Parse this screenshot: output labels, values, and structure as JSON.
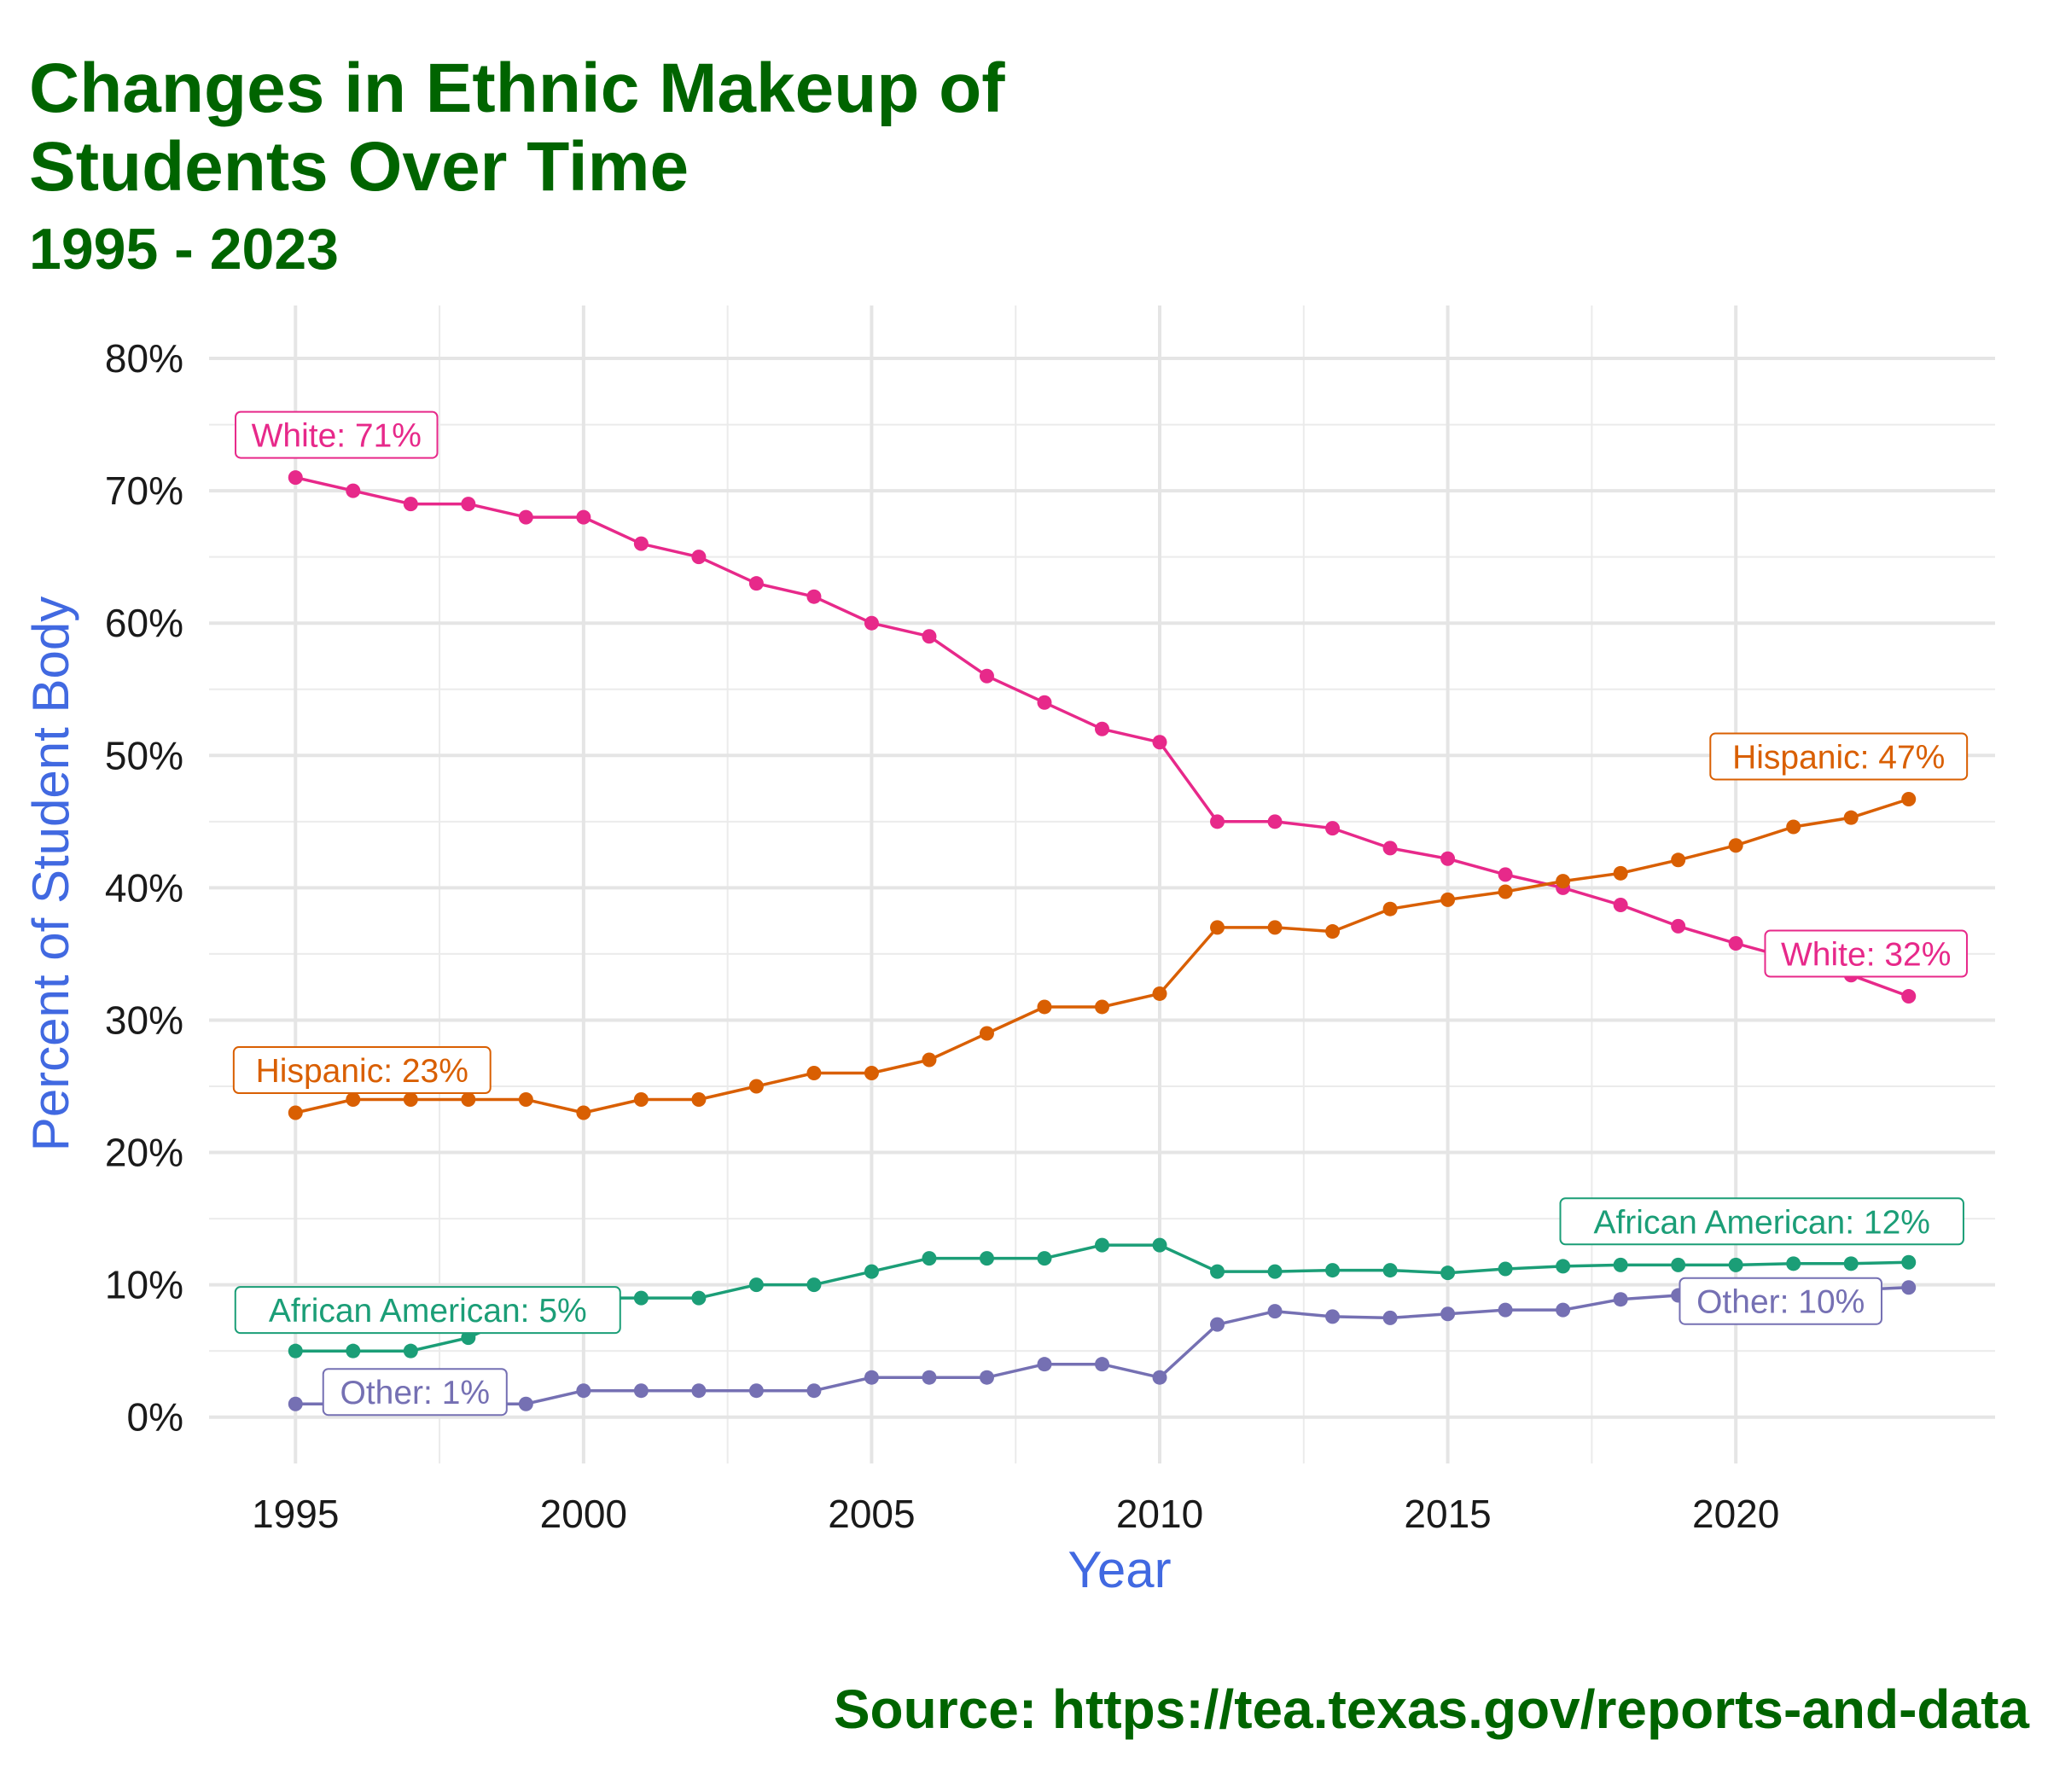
{
  "title_line1": "Changes in Ethnic Makeup of",
  "title_line2": "Students Over Time",
  "subtitle": "1995 - 2023",
  "source": "Source:  https://tea.texas.gov/reports-and-data",
  "chart_data": {
    "type": "line",
    "title": "Changes in Ethnic Makeup of Students Over Time",
    "subtitle": "1995 - 2023",
    "xlabel": "Year",
    "ylabel": "Percent of Student Body",
    "xlim": [
      1993.5,
      2024.5
    ],
    "ylim": [
      -3.5,
      84
    ],
    "x_ticks": [
      1995,
      2000,
      2005,
      2010,
      2015,
      2020
    ],
    "y_ticks": [
      0,
      10,
      20,
      30,
      40,
      50,
      60,
      70,
      80
    ],
    "y_tick_labels": [
      "0%",
      "10%",
      "20%",
      "30%",
      "40%",
      "50%",
      "60%",
      "70%",
      "80%"
    ],
    "grid": true,
    "legend": "none",
    "x": [
      1995,
      1996,
      1997,
      1998,
      1999,
      2000,
      2001,
      2002,
      2003,
      2004,
      2005,
      2006,
      2007,
      2008,
      2009,
      2010,
      2011,
      2012,
      2013,
      2014,
      2015,
      2016,
      2017,
      2018,
      2019,
      2020,
      2021,
      2022,
      2023
    ],
    "series": [
      {
        "name": "White",
        "color": "#E7298A",
        "values": [
          71,
          70,
          69,
          69,
          68,
          68,
          66,
          65,
          63,
          62,
          60,
          59,
          56,
          54,
          52,
          51,
          45,
          45,
          44.5,
          43,
          42.2,
          41,
          40,
          38.7,
          37.1,
          35.8,
          34.6,
          33.4,
          31.8
        ],
        "start_label": "White: 71%",
        "end_label": "White: 32%"
      },
      {
        "name": "Hispanic",
        "color": "#D95F02",
        "values": [
          23,
          24,
          24,
          24,
          24,
          23,
          24,
          24,
          25,
          26,
          26,
          27,
          29,
          31,
          31,
          32,
          37,
          37,
          36.7,
          38.4,
          39.1,
          39.7,
          40.5,
          41.1,
          42.1,
          43.2,
          44.6,
          45.3,
          46.7
        ],
        "start_label": "Hispanic: 23%",
        "end_label": "Hispanic: 47%"
      },
      {
        "name": "African American",
        "color": "#1B9E77",
        "values": [
          5,
          5,
          5,
          6,
          8,
          9,
          9,
          9,
          10,
          10,
          11,
          12,
          12,
          12,
          13,
          13,
          11,
          11,
          11.1,
          11.1,
          10.9,
          11.2,
          11.4,
          11.5,
          11.5,
          11.5,
          11.6,
          11.6,
          11.7
        ],
        "start_label": "African American: 5%",
        "end_label": "African American: 12%"
      },
      {
        "name": "Other",
        "color": "#7570B3",
        "values": [
          1,
          1,
          1,
          1,
          1,
          2,
          2,
          2,
          2,
          2,
          3,
          3,
          3,
          4,
          4,
          3,
          7,
          8,
          7.6,
          7.5,
          7.8,
          8.1,
          8.1,
          8.9,
          9.2,
          9.4,
          9.5,
          9.6,
          9.8
        ],
        "start_label": "Other: 1%",
        "end_label": "Other: 10%"
      }
    ]
  }
}
